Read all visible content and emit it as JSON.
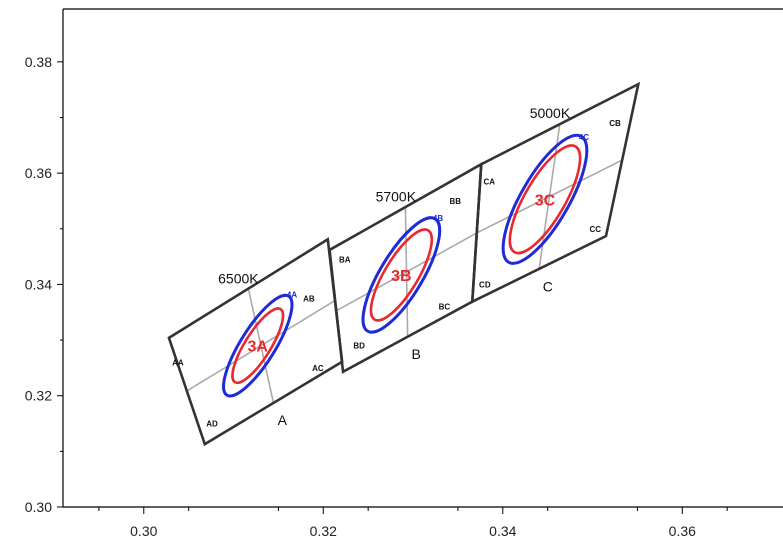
{
  "chart_data": {
    "type": "scatter",
    "title": "",
    "xlabel": "",
    "ylabel": "",
    "xlim": [
      0.291,
      0.372
    ],
    "ylim": [
      0.3,
      0.3895
    ],
    "x_ticks": [
      {
        "value": 0.3,
        "label": "0.30"
      },
      {
        "value": 0.32,
        "label": "0.32"
      },
      {
        "value": 0.34,
        "label": "0.34"
      },
      {
        "value": 0.36,
        "label": "0.36"
      }
    ],
    "y_ticks": [
      {
        "value": 0.3,
        "label": "0.30"
      },
      {
        "value": 0.32,
        "label": "0.32"
      },
      {
        "value": 0.34,
        "label": "0.34"
      },
      {
        "value": 0.36,
        "label": "0.36"
      },
      {
        "value": 0.38,
        "label": "0.38"
      }
    ],
    "grid": false,
    "colors": {
      "frame": "#000000",
      "quad": "#333333",
      "divider": "#aaaaaa",
      "inner": "#e8292f",
      "outer": "#1e2bd6"
    },
    "quadrangles": [
      {
        "name": "A",
        "cct_label": "6500K",
        "corners": [
          [
            0.3028,
            0.3304
          ],
          [
            0.3205,
            0.3481
          ],
          [
            0.3221,
            0.3261
          ],
          [
            0.3068,
            0.3113
          ]
        ],
        "bottom_label": "A",
        "sub_bins": [
          {
            "label": "AA",
            "at": [
              0.3038,
              0.326
            ]
          },
          {
            "label": "AB",
            "at": [
              0.3184,
              0.3375
            ]
          },
          {
            "label": "AC",
            "at": [
              0.3194,
              0.325
            ]
          },
          {
            "label": "AD",
            "at": [
              0.3076,
              0.315
            ]
          }
        ],
        "inner_ellipse": {
          "center": [
            0.3127,
            0.329
          ],
          "rx": 0.0048,
          "ry": 0.0023,
          "angle_deg": 58,
          "label": "3A"
        },
        "outer_ellipse": {
          "center": [
            0.3127,
            0.329
          ],
          "rx": 0.0065,
          "ry": 0.0031,
          "angle_deg": 58,
          "label": "4A"
        }
      },
      {
        "name": "B",
        "cct_label": "5700K",
        "corners": [
          [
            0.3207,
            0.3462
          ],
          [
            0.3376,
            0.3616
          ],
          [
            0.3366,
            0.3369
          ],
          [
            0.3222,
            0.3243
          ]
        ],
        "bottom_label": "B",
        "sub_bins": [
          {
            "label": "BA",
            "at": [
              0.3224,
              0.3445
            ]
          },
          {
            "label": "BB",
            "at": [
              0.3347,
              0.355
            ]
          },
          {
            "label": "BC",
            "at": [
              0.3335,
              0.336
            ]
          },
          {
            "label": "BD",
            "at": [
              0.324,
              0.329
            ]
          }
        ],
        "inner_ellipse": {
          "center": [
            0.3287,
            0.3417
          ],
          "rx": 0.0058,
          "ry": 0.003,
          "angle_deg": 59,
          "label": "3B"
        },
        "outer_ellipse": {
          "center": [
            0.3287,
            0.3417
          ],
          "rx": 0.0073,
          "ry": 0.0038,
          "angle_deg": 59,
          "label": "4B"
        }
      },
      {
        "name": "C",
        "cct_label": "5000K",
        "corners": [
          [
            0.3376,
            0.3616
          ],
          [
            0.3551,
            0.376
          ],
          [
            0.3515,
            0.3487
          ],
          [
            0.3366,
            0.3369
          ]
        ],
        "bottom_label": "C",
        "sub_bins": [
          {
            "label": "CA",
            "at": [
              0.3385,
              0.3585
            ]
          },
          {
            "label": "CB",
            "at": [
              0.3525,
              0.369
            ]
          },
          {
            "label": "CC",
            "at": [
              0.3503,
              0.35
            ]
          },
          {
            "label": "CD",
            "at": [
              0.338,
              0.34
            ]
          }
        ],
        "inner_ellipse": {
          "center": [
            0.3447,
            0.3553
          ],
          "rx": 0.0068,
          "ry": 0.0036,
          "angle_deg": 60,
          "label": "3C"
        },
        "outer_ellipse": {
          "center": [
            0.3447,
            0.3553
          ],
          "rx": 0.0081,
          "ry": 0.0043,
          "angle_deg": 60,
          "label": "4C"
        }
      }
    ]
  }
}
